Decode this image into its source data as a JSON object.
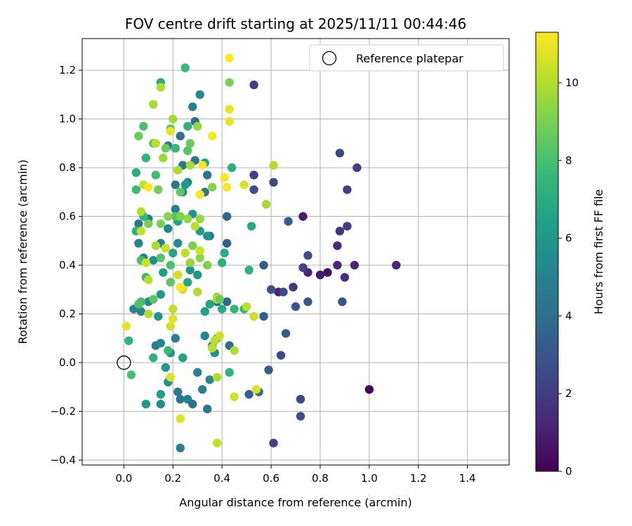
{
  "chart_data": {
    "type": "scatter",
    "title": "FOV centre drift starting at 2025/11/11 00:44:46",
    "xlabel": "Angular distance from reference (arcmin)",
    "ylabel": "Rotation from reference (arcmin)",
    "xlim": [
      -0.17,
      1.57
    ],
    "ylim": [
      -0.42,
      1.33
    ],
    "xticks": [
      "0.0",
      "0.2",
      "0.4",
      "0.6",
      "0.8",
      "1.0",
      "1.2",
      "1.4"
    ],
    "yticks": [
      "−0.4",
      "−0.2",
      "0.0",
      "0.2",
      "0.4",
      "0.6",
      "0.8",
      "1.0",
      "1.2"
    ],
    "grid": true,
    "legend": {
      "label": "Reference platepar",
      "position": "top-right"
    },
    "reference": {
      "x": 0.0,
      "y": 0.0
    },
    "colorbar": {
      "label": "Hours from first FF file",
      "min": 0,
      "max": 11.3,
      "ticks": [
        "0",
        "2",
        "4",
        "6",
        "8",
        "10"
      ],
      "colormap": "viridis"
    },
    "points": [
      [
        1.0,
        -0.11,
        0.1
      ],
      [
        0.83,
        0.37,
        0.5
      ],
      [
        0.73,
        0.6,
        0.9
      ],
      [
        0.75,
        0.37,
        1.2
      ],
      [
        0.8,
        0.36,
        0.8
      ],
      [
        0.63,
        0.29,
        1.1
      ],
      [
        0.87,
        0.4,
        1.3
      ],
      [
        0.94,
        0.4,
        1.2
      ],
      [
        1.11,
        0.4,
        1.3
      ],
      [
        0.87,
        0.48,
        1.4
      ],
      [
        0.9,
        0.35,
        1.6
      ],
      [
        0.88,
        0.54,
        1.8
      ],
      [
        0.91,
        0.56,
        2.0
      ],
      [
        0.95,
        0.8,
        2.2
      ],
      [
        0.88,
        0.86,
        2.4
      ],
      [
        0.91,
        0.71,
        2.2
      ],
      [
        0.73,
        0.39,
        2.3
      ],
      [
        0.69,
        0.31,
        1.8
      ],
      [
        0.65,
        0.29,
        2.6
      ],
      [
        0.6,
        0.3,
        2.9
      ],
      [
        0.75,
        0.44,
        2.7
      ],
      [
        0.7,
        0.23,
        3.0
      ],
      [
        0.75,
        0.25,
        3.1
      ],
      [
        0.89,
        0.25,
        3.0
      ],
      [
        0.72,
        -0.15,
        2.5
      ],
      [
        0.72,
        -0.22,
        2.8
      ],
      [
        0.61,
        -0.33,
        2.3
      ],
      [
        0.64,
        0.03,
        2.6
      ],
      [
        0.66,
        0.12,
        3.2
      ],
      [
        0.67,
        0.58,
        3.4
      ],
      [
        0.61,
        0.74,
        2.5
      ],
      [
        0.53,
        0.77,
        2.1
      ],
      [
        0.53,
        0.71,
        2.8
      ],
      [
        0.53,
        1.14,
        2.0
      ],
      [
        0.57,
        0.4,
        3.2
      ],
      [
        0.57,
        0.19,
        3.4
      ],
      [
        0.59,
        -0.03,
        3.3
      ],
      [
        0.51,
        -0.13,
        3.5
      ],
      [
        0.55,
        -0.12,
        3.9
      ],
      [
        0.42,
        0.6,
        3.6
      ],
      [
        0.42,
        0.49,
        3.5
      ],
      [
        0.42,
        0.25,
        3.8
      ],
      [
        0.43,
        0.07,
        3.8
      ],
      [
        0.38,
        0.25,
        4.0
      ],
      [
        0.35,
        0.52,
        4.2
      ],
      [
        0.34,
        0.77,
        4.3
      ],
      [
        0.33,
        0.7,
        4.6
      ],
      [
        0.29,
        0.99,
        4.0
      ],
      [
        0.29,
        0.83,
        4.5
      ],
      [
        0.23,
        0.93,
        4.2
      ],
      [
        0.24,
        0.81,
        4.4
      ],
      [
        0.21,
        0.73,
        4.6
      ],
      [
        0.18,
        0.89,
        4.8
      ],
      [
        0.21,
        0.63,
        4.8
      ],
      [
        0.24,
        0.7,
        5.0
      ],
      [
        0.31,
        1.1,
        5.3
      ],
      [
        0.28,
        1.05,
        5.0
      ],
      [
        0.26,
        0.74,
        5.2
      ],
      [
        0.22,
        0.49,
        5.4
      ],
      [
        0.18,
        0.55,
        5.2
      ],
      [
        0.15,
        0.49,
        5.0
      ],
      [
        0.12,
        0.42,
        5.5
      ],
      [
        0.1,
        0.59,
        4.8
      ],
      [
        0.06,
        0.57,
        4.6
      ],
      [
        0.08,
        0.43,
        4.9
      ],
      [
        0.06,
        0.49,
        5.1
      ],
      [
        0.1,
        0.25,
        5.4
      ],
      [
        0.04,
        0.22,
        5.0
      ],
      [
        0.07,
        0.21,
        5.3
      ],
      [
        0.13,
        0.07,
        4.9
      ],
      [
        0.15,
        0.08,
        5.2
      ],
      [
        0.19,
        0.04,
        5.4
      ],
      [
        0.21,
        0.1,
        4.8
      ],
      [
        0.22,
        -0.12,
        4.6
      ],
      [
        0.23,
        -0.15,
        4.4
      ],
      [
        0.26,
        -0.15,
        4.7
      ],
      [
        0.28,
        -0.17,
        4.2
      ],
      [
        0.34,
        -0.19,
        4.5
      ],
      [
        0.23,
        -0.35,
        4.9
      ],
      [
        0.3,
        -0.04,
        5.1
      ],
      [
        0.32,
        -0.11,
        5.0
      ],
      [
        0.35,
        -0.07,
        5.3
      ],
      [
        0.36,
        0.07,
        5.5
      ],
      [
        0.37,
        0.04,
        5.6
      ],
      [
        0.33,
        0.11,
        5.2
      ],
      [
        0.27,
        0.38,
        5.8
      ],
      [
        0.3,
        0.36,
        6.0
      ],
      [
        0.34,
        0.52,
        5.7
      ],
      [
        0.31,
        0.54,
        6.1
      ],
      [
        0.28,
        0.61,
        5.9
      ],
      [
        0.25,
        0.73,
        6.2
      ],
      [
        0.22,
        0.58,
        6.4
      ],
      [
        0.2,
        0.45,
        6.6
      ],
      [
        0.16,
        0.37,
        6.3
      ],
      [
        0.15,
        0.28,
        6.0
      ],
      [
        0.14,
        0.19,
        5.9
      ],
      [
        0.17,
        -0.02,
        6.1
      ],
      [
        0.18,
        -0.08,
        5.8
      ],
      [
        0.15,
        -0.13,
        6.3
      ],
      [
        0.15,
        -0.17,
        5.6
      ],
      [
        0.09,
        -0.17,
        5.9
      ],
      [
        0.24,
        0.02,
        6.5
      ],
      [
        0.26,
        0.33,
        6.7
      ],
      [
        0.33,
        0.21,
        6.4
      ],
      [
        0.35,
        0.24,
        6.6
      ],
      [
        0.4,
        0.22,
        6.9
      ],
      [
        0.41,
        0.45,
        7.0
      ],
      [
        0.4,
        0.41,
        7.2
      ],
      [
        0.44,
        0.8,
        7.1
      ],
      [
        0.43,
        -0.04,
        7.3
      ],
      [
        0.38,
        0.1,
        7.0
      ],
      [
        0.45,
        0.22,
        7.4
      ],
      [
        0.49,
        0.22,
        7.6
      ],
      [
        0.51,
        0.38,
        7.2
      ],
      [
        0.52,
        0.56,
        6.8
      ],
      [
        0.33,
        0.82,
        6.5
      ],
      [
        0.26,
        0.97,
        7.2
      ],
      [
        0.21,
        0.88,
        7.5
      ],
      [
        0.15,
        1.15,
        6.9
      ],
      [
        0.25,
        1.21,
        7.6
      ],
      [
        0.13,
        0.77,
        7.8
      ],
      [
        0.09,
        0.84,
        7.4
      ],
      [
        0.05,
        0.78,
        7.1
      ],
      [
        0.05,
        0.71,
        7.7
      ],
      [
        0.08,
        0.6,
        7.5
      ],
      [
        0.05,
        0.54,
        7.2
      ],
      [
        0.07,
        0.42,
        7.9
      ],
      [
        0.09,
        0.35,
        7.6
      ],
      [
        0.07,
        0.25,
        7.8
      ],
      [
        0.12,
        0.02,
        7.3
      ],
      [
        0.18,
        0.05,
        7.6
      ],
      [
        0.02,
        0.09,
        7.4
      ],
      [
        0.03,
        -0.05,
        8.0
      ],
      [
        0.06,
        0.24,
        8.1
      ],
      [
        0.12,
        0.26,
        8.3
      ],
      [
        0.15,
        0.43,
        8.2
      ],
      [
        0.19,
        0.4,
        8.0
      ],
      [
        0.19,
        0.33,
        8.4
      ],
      [
        0.21,
        0.6,
        8.2
      ],
      [
        0.23,
        0.7,
        8.5
      ],
      [
        0.26,
        0.87,
        8.3
      ],
      [
        0.27,
        0.9,
        8.6
      ],
      [
        0.19,
        0.96,
        8.4
      ],
      [
        0.17,
        0.88,
        8.6
      ],
      [
        0.12,
        0.9,
        8.3
      ],
      [
        0.06,
        0.93,
        8.6
      ],
      [
        0.08,
        0.97,
        8.0
      ],
      [
        0.14,
        0.71,
        8.8
      ],
      [
        0.1,
        0.57,
        8.9
      ],
      [
        0.15,
        0.57,
        9.0
      ],
      [
        0.18,
        0.6,
        9.2
      ],
      [
        0.23,
        0.6,
        9.1
      ],
      [
        0.26,
        0.59,
        9.4
      ],
      [
        0.28,
        0.48,
        9.0
      ],
      [
        0.31,
        0.43,
        9.3
      ],
      [
        0.27,
        0.41,
        9.5
      ],
      [
        0.31,
        0.59,
        9.6
      ],
      [
        0.36,
        0.72,
        9.2
      ],
      [
        0.3,
        0.97,
        9.5
      ],
      [
        0.27,
        0.81,
        9.8
      ],
      [
        0.22,
        0.79,
        9.9
      ],
      [
        0.16,
        0.84,
        9.6
      ],
      [
        0.2,
        1.0,
        9.7
      ],
      [
        0.15,
        1.13,
        10.0
      ],
      [
        0.12,
        1.06,
        9.8
      ],
      [
        0.13,
        0.9,
        10.1
      ],
      [
        0.08,
        0.73,
        10.3
      ],
      [
        0.07,
        0.62,
        10.0
      ],
      [
        0.07,
        0.54,
        10.2
      ],
      [
        0.09,
        0.41,
        10.4
      ],
      [
        0.1,
        0.34,
        10.1
      ],
      [
        0.13,
        0.48,
        9.9
      ],
      [
        0.17,
        0.47,
        10.3
      ],
      [
        0.22,
        0.36,
        10.5
      ],
      [
        0.25,
        0.45,
        10.2
      ],
      [
        0.29,
        0.56,
        10.1
      ],
      [
        0.31,
        0.46,
        10.4
      ],
      [
        0.3,
        0.29,
        10.0
      ],
      [
        0.24,
        0.3,
        10.6
      ],
      [
        0.2,
        0.22,
        10.2
      ],
      [
        0.19,
        0.15,
        10.5
      ],
      [
        0.2,
        0.18,
        10.8
      ],
      [
        0.1,
        0.2,
        10.0
      ],
      [
        0.01,
        0.15,
        10.9
      ],
      [
        0.19,
        -0.06,
        10.6
      ],
      [
        0.23,
        -0.23,
        10.7
      ],
      [
        0.37,
        0.09,
        10.1
      ],
      [
        0.39,
        0.11,
        10.4
      ],
      [
        0.36,
        0.06,
        10.2
      ],
      [
        0.38,
        -0.06,
        10.0
      ],
      [
        0.45,
        0.05,
        9.9
      ],
      [
        0.45,
        -0.14,
        10.5
      ],
      [
        0.38,
        -0.33,
        10.3
      ],
      [
        0.54,
        -0.11,
        10.6
      ],
      [
        0.53,
        0.19,
        10.4
      ],
      [
        0.5,
        0.23,
        10.2
      ],
      [
        0.38,
        0.27,
        9.8
      ],
      [
        0.38,
        0.26,
        10.1
      ],
      [
        0.49,
        0.73,
        10.6
      ],
      [
        0.41,
        0.76,
        11.2
      ],
      [
        0.42,
        0.72,
        11.3
      ],
      [
        0.43,
        0.99,
        11.0
      ],
      [
        0.43,
        1.04,
        10.9
      ],
      [
        0.43,
        1.15,
        9.0
      ],
      [
        0.43,
        1.25,
        11.3
      ],
      [
        0.36,
        0.93,
        11.1
      ],
      [
        0.32,
        0.81,
        11.3
      ],
      [
        0.31,
        0.69,
        11.2
      ],
      [
        0.23,
        0.31,
        11.3
      ],
      [
        0.1,
        0.72,
        11.2
      ],
      [
        0.19,
        0.95,
        10.9
      ],
      [
        0.61,
        0.81,
        10.0
      ],
      [
        0.58,
        0.65,
        9.7
      ],
      [
        0.39,
        0.26,
        8.7
      ],
      [
        0.34,
        0.4,
        9.1
      ]
    ]
  }
}
